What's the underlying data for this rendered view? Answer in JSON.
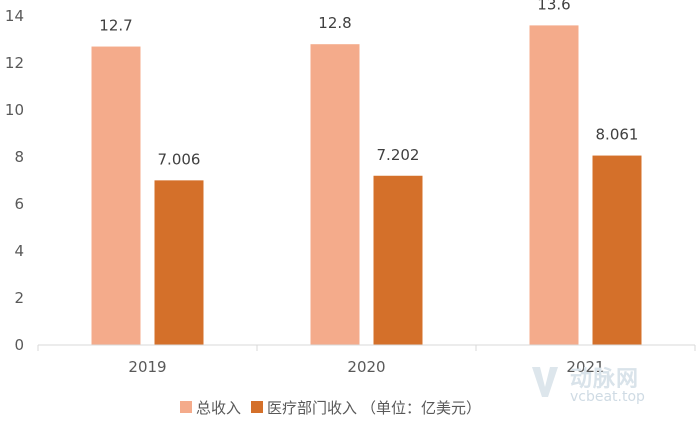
{
  "chart_data": {
    "type": "bar",
    "categories": [
      "2019",
      "2020",
      "2021"
    ],
    "series": [
      {
        "name": "总收入",
        "color": "#F4AB8B",
        "values": [
          12.7,
          12.8,
          13.6
        ],
        "labels": [
          "12.7",
          "12.8",
          "13.6"
        ]
      },
      {
        "name": "医疗部门收入",
        "color": "#D4702A",
        "values": [
          7.006,
          7.202,
          8.061
        ],
        "labels": [
          "7.006",
          "7.202",
          "8.061"
        ]
      }
    ],
    "ylim": [
      0,
      14
    ],
    "yticks": [
      "0",
      "2",
      "4",
      "6",
      "8",
      "10",
      "12",
      "14"
    ],
    "grid": false,
    "legend_position": "bottom",
    "legend_suffix": "（单位：亿美元）"
  },
  "watermark": {
    "name": "动脉网",
    "url": "vcbeat.top"
  }
}
